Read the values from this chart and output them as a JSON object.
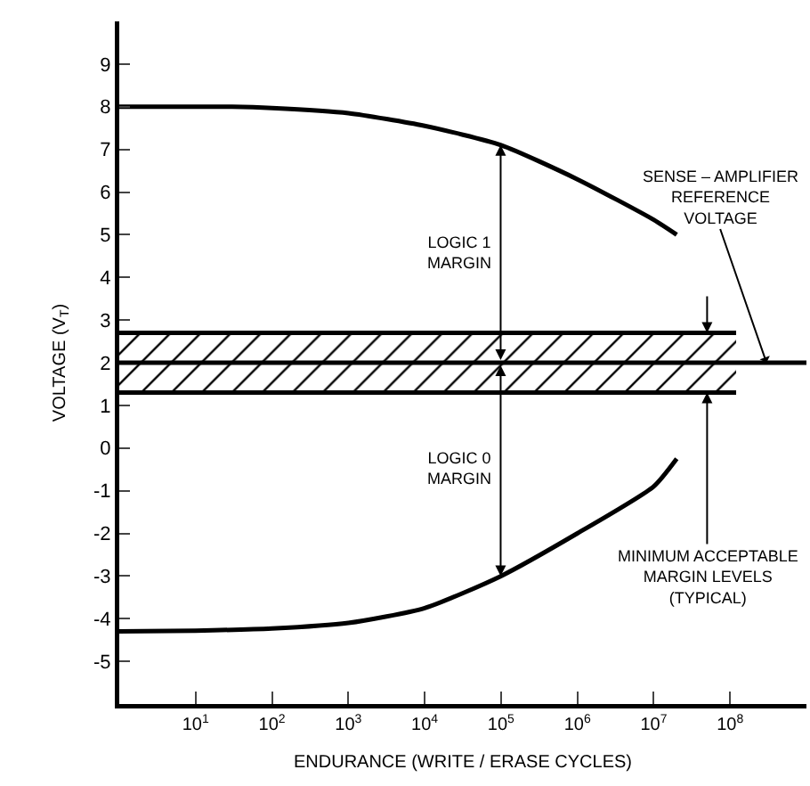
{
  "chart_data": {
    "type": "line",
    "xlabel": "ENDURANCE (WRITE / ERASE CYCLES)",
    "ylabel": "VOLTAGE (V$_{T}$)",
    "log": "x",
    "xlim": [
      1,
      1000000000
    ],
    "ylim": [
      -6,
      10
    ],
    "xticks": [
      {
        "value": 10,
        "label": "10$^{1}$"
      },
      {
        "value": 100,
        "label": "10$^{2}$"
      },
      {
        "value": 1000,
        "label": "10$^{3}$"
      },
      {
        "value": 10000,
        "label": "10$^{4}$"
      },
      {
        "value": 100000,
        "label": "10$^{5}$"
      },
      {
        "value": 1000000,
        "label": "10$^{6}$"
      },
      {
        "value": 10000000,
        "label": "10$^{7}$"
      },
      {
        "value": 100000000,
        "label": "10$^{8}$"
      }
    ],
    "yticks": [
      -5,
      -4,
      -3,
      -2,
      -1,
      0,
      1,
      2,
      3,
      4,
      5,
      6,
      7,
      8,
      9
    ],
    "grid": false,
    "marker": "none",
    "line_style": "solid",
    "series": [
      {
        "color": "#000000",
        "x": [
          1,
          10,
          30,
          100,
          1000,
          10000,
          100000,
          1000000,
          10000000,
          20000000
        ],
        "values": [
          8.0,
          8.0,
          8.0,
          7.97,
          7.85,
          7.55,
          7.1,
          6.3,
          5.35,
          5.0
        ]
      },
      {
        "color": "#000000",
        "x": [
          1,
          10,
          100,
          1000,
          10000,
          100000,
          1000000,
          10000000,
          20000000
        ],
        "values": [
          -4.3,
          -4.28,
          -4.23,
          -4.1,
          -3.75,
          -3.0,
          -2.0,
          -0.9,
          -0.25
        ]
      },
      {
        "color": "#000000",
        "x": [
          1,
          120000000
        ],
        "values": [
          2.7,
          2.7
        ]
      },
      {
        "color": "#000000",
        "x": [
          1,
          120000000
        ],
        "values": [
          1.3,
          1.3
        ]
      }
    ],
    "ref_lines": [
      {
        "axis": "y",
        "value": 2,
        "color": "#000000"
      }
    ],
    "bands": [
      {
        "axis": "y",
        "from": 1.3,
        "to": 2.7,
        "color": "#000000"
      }
    ],
    "annotations": [
      "LOGIC 1\nMARGIN",
      "LOGIC 0\nMARGIN",
      {
        "text": "SENSE – AMPLIFIER\nREFERENCE\nVOLTAGE",
        "x": 300000000,
        "y": 2
      },
      {
        "text": "MINIMUM ACCEPTABLE\nMARGIN LEVELS\n(TYPICAL)",
        "x": 50000000,
        "y": 1.3
      }
    ]
  }
}
